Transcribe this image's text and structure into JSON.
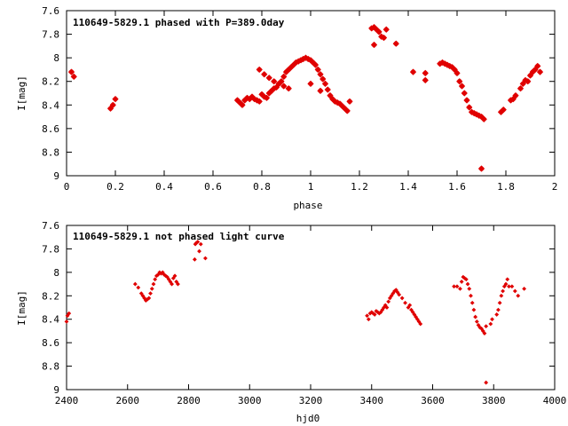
{
  "chart_data": [
    {
      "type": "scatter",
      "title": "110649-5829.1 phased with P=389.0day",
      "xlabel": "phase",
      "ylabel": "I[mag]",
      "xlim": [
        0,
        2
      ],
      "ylim": [
        7.6,
        9
      ],
      "y_inverted": true,
      "grid": false,
      "x_ticks": [
        "0",
        "0.2",
        "0.4",
        "0.6",
        "0.8",
        "1",
        "1.2",
        "1.4",
        "1.6",
        "1.8",
        "2"
      ],
      "y_ticks": [
        "7.6",
        "7.8",
        "8",
        "8.2",
        "8.4",
        "8.6",
        "8.8",
        "9"
      ],
      "marker": "star",
      "color": "#e00000",
      "series": [
        {
          "x": [
            0.02,
            0.03,
            0.18,
            0.19,
            0.2,
            0.7,
            0.71,
            0.72,
            0.73,
            0.74,
            0.75,
            0.76,
            0.77,
            0.78,
            0.79,
            0.8,
            0.81,
            0.82,
            0.83,
            0.84,
            0.85,
            0.86,
            0.87,
            0.88,
            0.89,
            0.9,
            0.91,
            0.92,
            0.93,
            0.94,
            0.95,
            0.96,
            0.97,
            0.98,
            0.99,
            1.0,
            1.01,
            1.02,
            1.03,
            1.04,
            1.05,
            1.06,
            1.07,
            1.08,
            1.09,
            1.1,
            1.11,
            1.12,
            1.13,
            1.14,
            1.15,
            1.16,
            0.79,
            0.81,
            0.83,
            0.85,
            0.87,
            0.89,
            0.91,
            1.0,
            1.04,
            1.25,
            1.26,
            1.27,
            1.28,
            1.29,
            1.3,
            1.31,
            1.35,
            1.26,
            1.42,
            1.47,
            1.47,
            1.53,
            1.54,
            1.55,
            1.56,
            1.57,
            1.58,
            1.59,
            1.6,
            1.61,
            1.62,
            1.63,
            1.64,
            1.65,
            1.66,
            1.67,
            1.68,
            1.69,
            1.7,
            1.71,
            1.7,
            1.78,
            1.79,
            1.82,
            1.83,
            1.84,
            1.86,
            1.87,
            1.88,
            1.89,
            1.9,
            1.91,
            1.92,
            1.93,
            1.94
          ],
          "y": [
            8.12,
            8.16,
            8.43,
            8.4,
            8.35,
            8.36,
            8.38,
            8.4,
            8.36,
            8.34,
            8.35,
            8.33,
            8.35,
            8.36,
            8.37,
            8.31,
            8.33,
            8.34,
            8.3,
            8.28,
            8.26,
            8.25,
            8.22,
            8.2,
            8.16,
            8.12,
            8.1,
            8.08,
            8.06,
            8.04,
            8.03,
            8.02,
            8.01,
            8.0,
            8.01,
            8.02,
            8.04,
            8.06,
            8.1,
            8.14,
            8.18,
            8.22,
            8.27,
            8.32,
            8.35,
            8.37,
            8.38,
            8.39,
            8.41,
            8.43,
            8.45,
            8.37,
            8.1,
            8.14,
            8.17,
            8.2,
            8.22,
            8.24,
            8.26,
            8.22,
            8.28,
            7.75,
            7.74,
            7.76,
            7.78,
            7.82,
            7.83,
            7.76,
            7.88,
            7.89,
            8.12,
            8.13,
            8.19,
            8.05,
            8.04,
            8.05,
            8.06,
            8.07,
            8.08,
            8.1,
            8.13,
            8.2,
            8.24,
            8.3,
            8.36,
            8.42,
            8.46,
            8.47,
            8.48,
            8.49,
            8.5,
            8.52,
            8.94,
            8.46,
            8.44,
            8.36,
            8.35,
            8.32,
            8.26,
            8.22,
            8.19,
            8.2,
            8.15,
            8.12,
            8.1,
            8.07,
            8.12
          ]
        }
      ]
    },
    {
      "type": "scatter",
      "title": "110649-5829.1 not phased light curve",
      "xlabel": "hjd0",
      "ylabel": "I[mag]",
      "xlim": [
        2400,
        4000
      ],
      "ylim": [
        7.6,
        9
      ],
      "y_inverted": true,
      "grid": false,
      "x_ticks": [
        "2400",
        "2600",
        "2800",
        "3000",
        "3200",
        "3400",
        "3600",
        "3800",
        "4000"
      ],
      "y_ticks": [
        "7.6",
        "7.8",
        "8",
        "8.2",
        "8.4",
        "8.6",
        "8.8",
        "9"
      ],
      "marker": "diamond",
      "color": "#e00000",
      "series": [
        {
          "x": [
            2403,
            2408,
            2400,
            2625,
            2635,
            2645,
            2650,
            2655,
            2660,
            2665,
            2670,
            2675,
            2680,
            2685,
            2690,
            2695,
            2700,
            2705,
            2710,
            2715,
            2720,
            2725,
            2730,
            2735,
            2740,
            2745,
            2750,
            2755,
            2760,
            2765,
            2820,
            2825,
            2830,
            2835,
            2840,
            2822,
            2855,
            3385,
            3390,
            3395,
            3400,
            3405,
            3410,
            3415,
            3420,
            3425,
            3430,
            3435,
            3440,
            3445,
            3450,
            3455,
            3460,
            3465,
            3470,
            3475,
            3480,
            3485,
            3490,
            3500,
            3510,
            3520,
            3525,
            3530,
            3535,
            3540,
            3545,
            3550,
            3555,
            3560,
            3670,
            3680,
            3690,
            3695,
            3700,
            3705,
            3710,
            3715,
            3720,
            3725,
            3730,
            3735,
            3740,
            3745,
            3750,
            3755,
            3760,
            3765,
            3770,
            3775,
            3775,
            3790,
            3795,
            3810,
            3815,
            3820,
            3825,
            3830,
            3835,
            3840,
            3845,
            3850,
            3860,
            3870,
            3880,
            3900
          ],
          "y": [
            8.37,
            8.35,
            8.42,
            8.1,
            8.13,
            8.18,
            8.2,
            8.22,
            8.24,
            8.23,
            8.22,
            8.18,
            8.14,
            8.1,
            8.06,
            8.03,
            8.02,
            8.0,
            8.01,
            8.0,
            8.02,
            8.03,
            8.04,
            8.06,
            8.08,
            8.1,
            8.05,
            8.03,
            8.08,
            8.1,
            7.89,
            7.75,
            7.74,
            7.82,
            7.76,
            7.76,
            7.88,
            8.37,
            8.4,
            8.35,
            8.34,
            8.35,
            8.36,
            8.33,
            8.34,
            8.35,
            8.34,
            8.32,
            8.3,
            8.28,
            8.3,
            8.25,
            8.22,
            8.2,
            8.18,
            8.16,
            8.15,
            8.17,
            8.19,
            8.22,
            8.26,
            8.3,
            8.28,
            8.32,
            8.34,
            8.36,
            8.38,
            8.4,
            8.42,
            8.44,
            8.12,
            8.12,
            8.14,
            8.08,
            8.04,
            8.05,
            8.06,
            8.1,
            8.14,
            8.2,
            8.26,
            8.32,
            8.38,
            8.42,
            8.45,
            8.47,
            8.48,
            8.5,
            8.52,
            8.94,
            8.46,
            8.44,
            8.4,
            8.36,
            8.32,
            8.26,
            8.2,
            8.16,
            8.12,
            8.1,
            8.06,
            8.12,
            8.12,
            8.16,
            8.2,
            8.14
          ]
        }
      ]
    }
  ]
}
